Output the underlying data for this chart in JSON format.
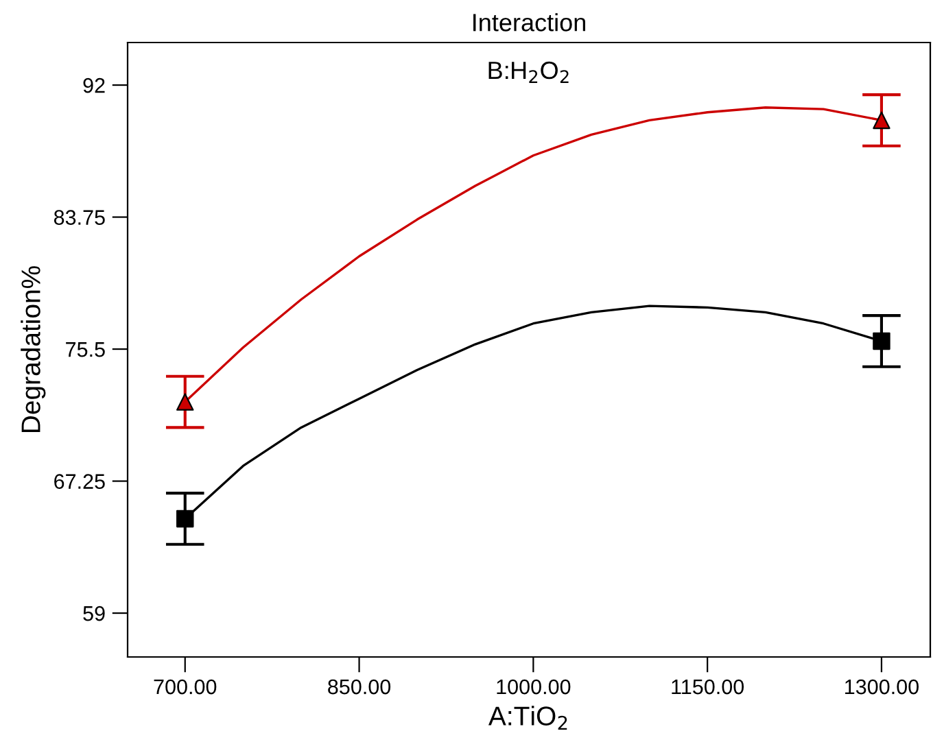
{
  "chart_data": {
    "type": "line",
    "title": "Interaction",
    "subtitle": "B:H$_{2}$O$_{2}$",
    "xlabel": "A:TiO$_{2}$",
    "ylabel": "Degradation%",
    "xlim": [
      650.5,
      1342
    ],
    "ylim": [
      56.26,
      94.66
    ],
    "xticks": [
      {
        "value": 700,
        "label": "700.00"
      },
      {
        "value": 850,
        "label": "850.00"
      },
      {
        "value": 1000,
        "label": "1000.00"
      },
      {
        "value": 1150,
        "label": "1150.00"
      },
      {
        "value": 1300,
        "label": "1300.00"
      }
    ],
    "yticks": [
      59,
      67.25,
      75.5,
      83.75,
      92
    ],
    "grid": false,
    "legend": false,
    "series": [
      {
        "color": "#cc0000",
        "marker": "none",
        "x": [
          700,
          750,
          800,
          850,
          900,
          950,
          1000,
          1050,
          1100,
          1150,
          1200,
          1250,
          1300
        ],
        "values": [
          72.2,
          75.6,
          78.6,
          81.3,
          83.6,
          85.7,
          87.6,
          88.9,
          89.8,
          90.3,
          90.6,
          90.5,
          89.8
        ]
      },
      {
        "color": "#000000",
        "marker": "none",
        "x": [
          700,
          750,
          800,
          850,
          900,
          950,
          1000,
          1050,
          1100,
          1150,
          1200,
          1250,
          1300
        ],
        "values": [
          64.9,
          68.2,
          70.6,
          72.4,
          74.2,
          75.8,
          77.1,
          77.8,
          78.2,
          78.1,
          77.8,
          77.1,
          76.0
        ]
      },
      {
        "type": "scatter",
        "color": "#cc0000",
        "marker": "triangle",
        "x": [
          700,
          1300
        ],
        "values": [
          72.2,
          89.8
        ],
        "errors": [
          1.6,
          1.6
        ]
      },
      {
        "type": "scatter",
        "color": "#000000",
        "marker": "square",
        "x": [
          700,
          1300
        ],
        "values": [
          64.9,
          76.0
        ],
        "errors": [
          1.6,
          1.6
        ]
      }
    ]
  }
}
